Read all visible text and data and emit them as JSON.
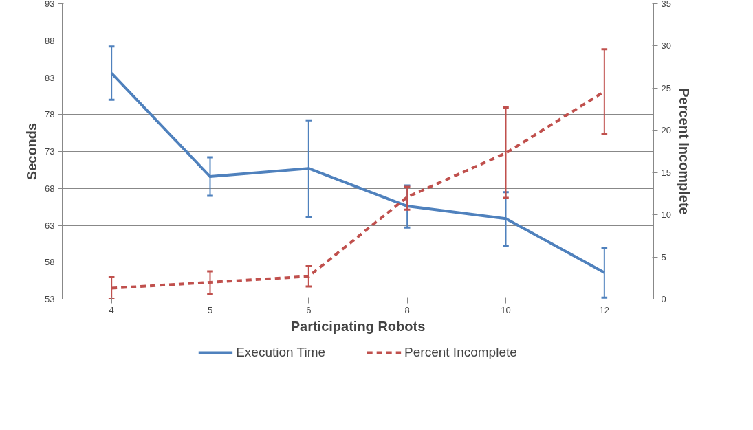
{
  "chart_data": {
    "type": "line",
    "xlabel": "Participating Robots",
    "ylabel": "Seconds",
    "y2label": "Percent Incomplete",
    "categories": [
      "4",
      "5",
      "6",
      "8",
      "10",
      "12"
    ],
    "ylim": [
      53,
      93
    ],
    "yticks": [
      53,
      58,
      63,
      68,
      73,
      78,
      83,
      88,
      93
    ],
    "y2lim": [
      0,
      35
    ],
    "y2ticks": [
      0,
      5,
      10,
      15,
      20,
      25,
      30,
      35
    ],
    "grid": "y",
    "legend": "bottom",
    "series": [
      {
        "name": "Execution Time",
        "color": "#4f81bd",
        "line_style": "solid",
        "values": [
          83.6,
          69.6,
          70.7,
          65.6,
          63.9,
          56.6
        ],
        "errors": [
          [
            80.0,
            87.2
          ],
          [
            67.0,
            72.2
          ],
          [
            64.1,
            77.2
          ],
          [
            62.7,
            68.4
          ],
          [
            60.2,
            67.5
          ],
          [
            53.2,
            59.9
          ]
        ]
      },
      {
        "name": "Percent Incomplete",
        "color": "#c0504d",
        "line_style": "dashed",
        "axis": "y2",
        "values": [
          1.3,
          2.0,
          2.7,
          12.1,
          17.3,
          24.6
        ],
        "errors": [
          [
            0,
            2.6
          ],
          [
            0.6,
            3.3
          ],
          [
            1.5,
            3.9
          ],
          [
            10.6,
            13.3
          ],
          [
            12.0,
            22.7
          ],
          [
            19.6,
            29.6
          ]
        ]
      }
    ]
  }
}
